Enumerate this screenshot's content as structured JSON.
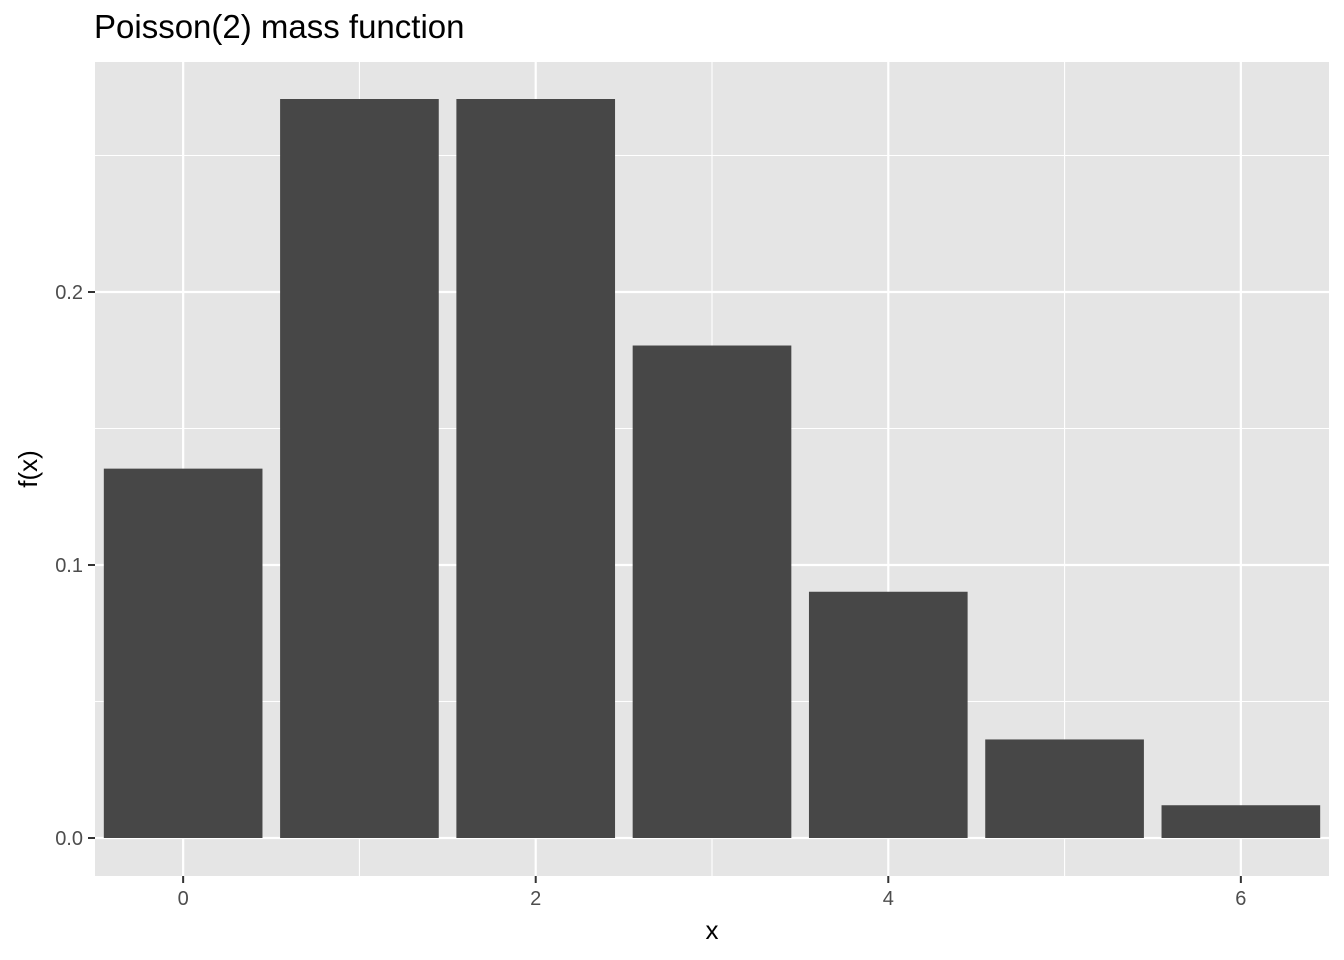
{
  "chart_data": {
    "type": "bar",
    "title": "Poisson(2) mass function",
    "xlabel": "x",
    "ylabel": "f(x)",
    "categories": [
      0,
      1,
      2,
      3,
      4,
      5,
      6
    ],
    "values": [
      0.1353,
      0.2707,
      0.2707,
      0.1804,
      0.0902,
      0.0361,
      0.012
    ],
    "xlim": [
      -0.5,
      6.5
    ],
    "ylim": [
      0,
      0.2842
    ],
    "x_ticks": [
      0,
      2,
      4,
      6
    ],
    "x_tick_labels": [
      "0",
      "2",
      "4",
      "6"
    ],
    "y_ticks": [
      0.0,
      0.1,
      0.2
    ],
    "y_tick_labels": [
      "0.0",
      "0.1",
      "0.2"
    ],
    "grid": true,
    "colors": {
      "bar": "#474747",
      "panel": "#e5e5e5",
      "grid": "#ffffff",
      "tick_text": "#4d4d4d",
      "tick_mark": "#333333"
    }
  }
}
